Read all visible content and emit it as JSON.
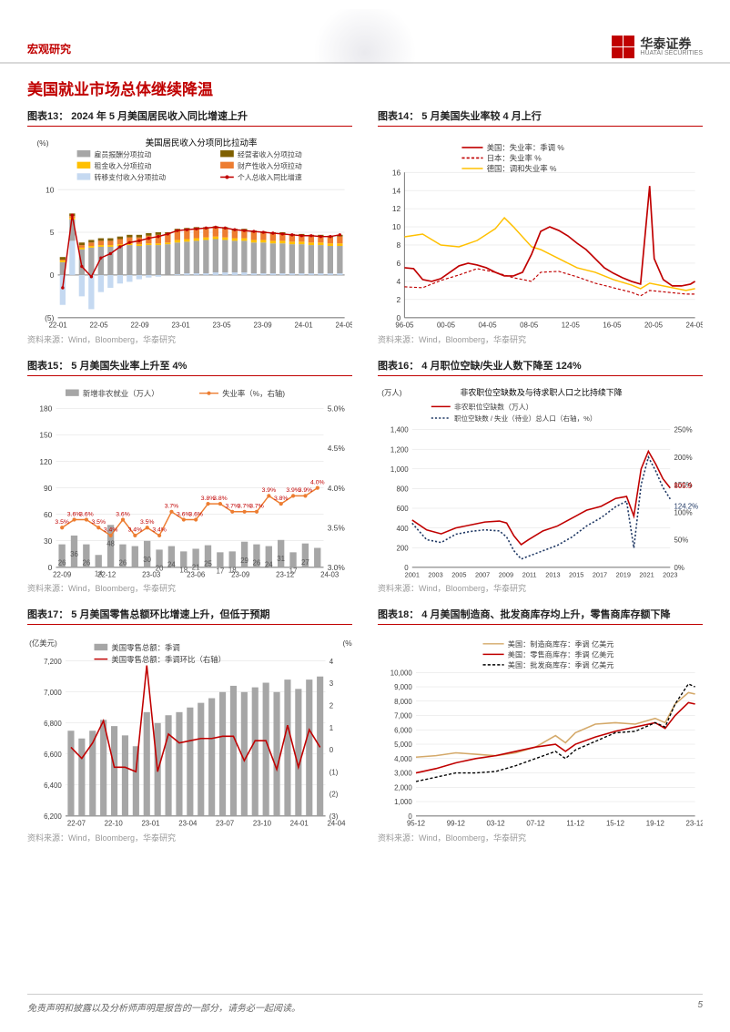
{
  "header": {
    "category": "宏观研究",
    "logo_cn": "华泰证券",
    "logo_en": "HUATAI SECURITIES"
  },
  "section_title": "美国就业市场总体继续降温",
  "source": "资料来源：Wind，Bloomberg，华泰研究",
  "footer": {
    "disclaimer": "免责声明和披露以及分析师声明是报告的一部分，请务必一起阅读。",
    "page": "5"
  },
  "colors": {
    "red": "#c00000",
    "dark_red": "#8b1a1a",
    "gray": "#a6a6a6",
    "orange": "#ed7d31",
    "yellow": "#ffc000",
    "brown": "#7f6000",
    "navy": "#1f3864",
    "axis": "#808080",
    "grid": "#d9d9d9",
    "label": "#404040",
    "tan": "#d4a96a"
  },
  "fig13": {
    "title": "图表13： 2024 年 5 月美国居民收入同比增速上升",
    "chart_title": "美国居民收入分项同比拉动率",
    "y_label": "(%)",
    "ylim": [
      -5,
      10
    ],
    "yticks": [
      -5,
      0,
      5,
      10
    ],
    "x_labels": [
      "22-01",
      "22-05",
      "22-09",
      "23-01",
      "23-05",
      "23-09",
      "24-01",
      "24-05"
    ],
    "legend": [
      {
        "label": "雇员报酬分项拉动",
        "color": "#a6a6a6",
        "type": "bar"
      },
      {
        "label": "经营者收入分项拉动",
        "color": "#7f6000",
        "type": "bar"
      },
      {
        "label": "租金收入分项拉动",
        "color": "#ffc000",
        "type": "bar"
      },
      {
        "label": "财产性收入分项拉动",
        "color": "#ed7d31",
        "type": "bar"
      },
      {
        "label": "转移支付收入分项拉动",
        "color": "#c5d9f1",
        "type": "bar"
      },
      {
        "label": "个人总收入同比增速",
        "color": "#c00000",
        "type": "line"
      }
    ],
    "n": 30,
    "wage": [
      1.5,
      2.5,
      3.0,
      3.2,
      3.3,
      3.3,
      3.4,
      3.5,
      3.4,
      3.5,
      3.5,
      3.6,
      3.7,
      3.7,
      3.8,
      3.9,
      3.9,
      3.8,
      3.7,
      3.7,
      3.6,
      3.6,
      3.5,
      3.5,
      3.4,
      3.4,
      3.3,
      3.3,
      3.2,
      3.2
    ],
    "rent": [
      0.2,
      0.2,
      0.2,
      0.2,
      0.2,
      0.2,
      0.2,
      0.2,
      0.2,
      0.2,
      0.2,
      0.2,
      0.3,
      0.3,
      0.3,
      0.3,
      0.3,
      0.3,
      0.3,
      0.3,
      0.3,
      0.3,
      0.3,
      0.3,
      0.3,
      0.3,
      0.3,
      0.3,
      0.3,
      0.3
    ],
    "prop": [
      0.1,
      0.2,
      0.3,
      0.4,
      0.5,
      0.5,
      0.6,
      0.7,
      0.8,
      0.9,
      1.0,
      1.0,
      1.1,
      1.1,
      1.1,
      1.0,
      1.0,
      1.0,
      0.9,
      0.9,
      0.9,
      0.8,
      0.8,
      0.8,
      0.7,
      0.7,
      0.7,
      0.7,
      0.7,
      0.8
    ],
    "biz": [
      0.3,
      0.3,
      0.3,
      0.3,
      0.3,
      0.3,
      0.3,
      0.3,
      0.3,
      0.3,
      0.3,
      0.2,
      0.2,
      0.2,
      0.2,
      0.2,
      0.2,
      0.2,
      0.2,
      0.2,
      0.2,
      0.2,
      0.2,
      0.2,
      0.2,
      0.2,
      0.2,
      0.2,
      0.2,
      0.2
    ],
    "transfer": [
      -3.5,
      4.0,
      -2.5,
      -4.0,
      -2.0,
      -1.5,
      -1.0,
      -0.8,
      -0.5,
      -0.3,
      -0.2,
      0.0,
      0.1,
      0.2,
      0.2,
      0.2,
      0.3,
      0.3,
      0.3,
      0.3,
      0.2,
      0.2,
      0.2,
      0.2,
      0.2,
      0.2,
      0.2,
      0.2,
      0.2,
      0.2
    ],
    "line": [
      -1.5,
      7.0,
      1.0,
      -0.2,
      2.0,
      2.5,
      3.3,
      3.8,
      4.0,
      4.3,
      4.5,
      4.8,
      5.2,
      5.3,
      5.4,
      5.5,
      5.6,
      5.5,
      5.3,
      5.2,
      5.1,
      5.0,
      4.9,
      4.8,
      4.7,
      4.6,
      4.6,
      4.5,
      4.5,
      4.7
    ]
  },
  "fig14": {
    "title": "图表14： 5 月美国失业率较 4 月上行",
    "ylim": [
      0,
      16
    ],
    "yticks": [
      0,
      2,
      4,
      6,
      8,
      10,
      12,
      14,
      16
    ],
    "x_labels": [
      "96-05",
      "00-05",
      "04-05",
      "08-05",
      "12-05",
      "16-05",
      "20-05",
      "24-05"
    ],
    "legend": [
      {
        "label": "美国：失业率：季调 %",
        "color": "#c00000",
        "dash": "0"
      },
      {
        "label": "日本：失业率 %",
        "color": "#c00000",
        "dash": "3,2"
      },
      {
        "label": "德国：调和失业率 %",
        "color": "#ffc000",
        "dash": "0"
      }
    ],
    "us": [
      [
        0,
        5.5
      ],
      [
        4,
        5.4
      ],
      [
        8,
        4.2
      ],
      [
        12,
        4.0
      ],
      [
        16,
        4.3
      ],
      [
        20,
        5.0
      ],
      [
        24,
        5.7
      ],
      [
        28,
        6.0
      ],
      [
        32,
        5.8
      ],
      [
        36,
        5.5
      ],
      [
        40,
        5.0
      ],
      [
        44,
        4.6
      ],
      [
        48,
        4.6
      ],
      [
        52,
        5.0
      ],
      [
        56,
        7.0
      ],
      [
        60,
        9.5
      ],
      [
        64,
        10.0
      ],
      [
        68,
        9.6
      ],
      [
        72,
        9.0
      ],
      [
        76,
        8.2
      ],
      [
        80,
        7.5
      ],
      [
        84,
        6.5
      ],
      [
        88,
        5.5
      ],
      [
        92,
        4.9
      ],
      [
        96,
        4.4
      ],
      [
        100,
        4.0
      ],
      [
        104,
        3.7
      ],
      [
        108,
        14.5
      ],
      [
        110,
        6.5
      ],
      [
        114,
        4.2
      ],
      [
        118,
        3.5
      ],
      [
        122,
        3.5
      ],
      [
        126,
        3.7
      ],
      [
        128,
        4.0
      ]
    ],
    "jp": [
      [
        0,
        3.4
      ],
      [
        8,
        3.3
      ],
      [
        16,
        4.1
      ],
      [
        24,
        4.7
      ],
      [
        32,
        5.4
      ],
      [
        40,
        5.0
      ],
      [
        48,
        4.4
      ],
      [
        56,
        4.0
      ],
      [
        60,
        5.0
      ],
      [
        68,
        5.1
      ],
      [
        76,
        4.5
      ],
      [
        84,
        3.8
      ],
      [
        92,
        3.3
      ],
      [
        100,
        2.8
      ],
      [
        104,
        2.4
      ],
      [
        108,
        3.0
      ],
      [
        116,
        2.8
      ],
      [
        124,
        2.6
      ],
      [
        128,
        2.6
      ]
    ],
    "de": [
      [
        0,
        8.9
      ],
      [
        8,
        9.2
      ],
      [
        16,
        8.0
      ],
      [
        24,
        7.8
      ],
      [
        32,
        8.5
      ],
      [
        40,
        9.8
      ],
      [
        44,
        11.0
      ],
      [
        48,
        10.0
      ],
      [
        56,
        7.8
      ],
      [
        60,
        7.5
      ],
      [
        68,
        6.5
      ],
      [
        76,
        5.5
      ],
      [
        84,
        5.0
      ],
      [
        92,
        4.2
      ],
      [
        100,
        3.6
      ],
      [
        104,
        3.2
      ],
      [
        108,
        3.8
      ],
      [
        116,
        3.4
      ],
      [
        124,
        3.0
      ],
      [
        128,
        3.2
      ]
    ]
  },
  "fig15": {
    "title": "图表15： 5 月美国失业率上升至 4%",
    "ylim_l": [
      0,
      180
    ],
    "ytick_l": [
      0,
      30,
      60,
      90,
      120,
      150,
      180
    ],
    "ylim_r": [
      3.0,
      5.0
    ],
    "ytick_r": [
      "3.0%",
      "3.5%",
      "4.0%",
      "4.5%",
      "5.0%"
    ],
    "x_labels": [
      "22-09",
      "22-12",
      "23-03",
      "23-06",
      "23-09",
      "23-12",
      "24-03"
    ],
    "legend": [
      {
        "label": "新增非农就业（万人）",
        "color": "#a6a6a6",
        "type": "bar"
      },
      {
        "label": "失业率（%，右轴)",
        "color": "#ed7d31",
        "type": "line"
      }
    ],
    "bars": [
      26,
      36,
      26,
      14,
      48,
      26,
      24,
      30,
      20,
      24,
      18,
      21,
      25,
      17,
      18,
      29,
      26,
      24,
      31,
      17,
      27,
      22
    ],
    "bar_labels": [
      "26",
      "36",
      "26",
      "14",
      "48",
      "26",
      "",
      "30",
      "20",
      "24",
      "18",
      "21",
      "25",
      "17",
      "18",
      "29",
      "26",
      "24",
      "31",
      "17",
      "27",
      ""
    ],
    "line": [
      3.5,
      3.6,
      3.6,
      3.5,
      3.4,
      3.6,
      3.4,
      3.5,
      3.4,
      3.7,
      3.6,
      3.6,
      3.8,
      3.8,
      3.7,
      3.7,
      3.7,
      3.9,
      3.8,
      3.9,
      3.9,
      4.0
    ],
    "line_labels": [
      "3.5%",
      "3.6%",
      "3.6%",
      "3.5%",
      "3.4%",
      "3.6%",
      "3.4%",
      "3.5%",
      "3.4%",
      "3.7%",
      "3.6%",
      "3.6%",
      "3.8%",
      "3.8%",
      "3.7%",
      "3.7%",
      "3.7%",
      "3.9%",
      "3.8%",
      "3.9%",
      "3.9%",
      "4.0%"
    ]
  },
  "fig16": {
    "title": "图表16： 4 月职位空缺/失业人数下降至 124%",
    "chart_title": "非农职位空缺数及与待求职人口之比持续下降",
    "y_label_l": "(万人)",
    "ylim_l": [
      0,
      1400
    ],
    "ytick_l": [
      0,
      200,
      400,
      600,
      800,
      1000,
      1200,
      1400
    ],
    "ylim_r": [
      0,
      250
    ],
    "ytick_r": [
      "0%",
      "50%",
      "100%",
      "150%",
      "200%",
      "250%"
    ],
    "x_labels": [
      "2001",
      "2003",
      "2005",
      "2007",
      "2009",
      "2011",
      "2013",
      "2015",
      "2017",
      "2019",
      "2021",
      "2023"
    ],
    "legend": [
      {
        "label": "非农职位空缺数（万人）",
        "color": "#c00000",
        "dash": "0"
      },
      {
        "label": "职位空缺数 / 失业（待业）总人口（右轴，%）",
        "color": "#1f3864",
        "dash": "2,2"
      }
    ],
    "red": [
      [
        0,
        480
      ],
      [
        8,
        380
      ],
      [
        16,
        340
      ],
      [
        24,
        400
      ],
      [
        32,
        430
      ],
      [
        40,
        460
      ],
      [
        48,
        470
      ],
      [
        52,
        450
      ],
      [
        56,
        320
      ],
      [
        60,
        230
      ],
      [
        64,
        280
      ],
      [
        72,
        370
      ],
      [
        80,
        420
      ],
      [
        88,
        500
      ],
      [
        96,
        580
      ],
      [
        104,
        620
      ],
      [
        112,
        700
      ],
      [
        118,
        720
      ],
      [
        122,
        520
      ],
      [
        126,
        1000
      ],
      [
        130,
        1180
      ],
      [
        134,
        1050
      ],
      [
        138,
        900
      ],
      [
        142,
        806
      ]
    ],
    "blue": [
      [
        0,
        80
      ],
      [
        8,
        50
      ],
      [
        16,
        45
      ],
      [
        24,
        60
      ],
      [
        32,
        65
      ],
      [
        40,
        68
      ],
      [
        48,
        66
      ],
      [
        52,
        55
      ],
      [
        56,
        30
      ],
      [
        60,
        15
      ],
      [
        64,
        20
      ],
      [
        72,
        30
      ],
      [
        80,
        40
      ],
      [
        88,
        55
      ],
      [
        96,
        75
      ],
      [
        104,
        90
      ],
      [
        112,
        110
      ],
      [
        118,
        120
      ],
      [
        122,
        35
      ],
      [
        126,
        150
      ],
      [
        130,
        200
      ],
      [
        134,
        175
      ],
      [
        138,
        145
      ],
      [
        142,
        124
      ]
    ],
    "annot": [
      {
        "text": "805.9",
        "color": "#c00000",
        "x": 144,
        "y_l": 806
      },
      {
        "text": "124.2%",
        "color": "#1f3864",
        "x": 144,
        "y_r": 124
      }
    ]
  },
  "fig17": {
    "title": "图表17： 5 月美国零售总额环比增速上升，但低于预期",
    "y_label_l": "(亿美元)",
    "ylim_l": [
      6200,
      7200
    ],
    "ytick_l": [
      6200,
      6400,
      6600,
      6800,
      7000,
      7200
    ],
    "y_label_r": "(%)",
    "ylim_r": [
      -3,
      4
    ],
    "ytick_r": [
      -3,
      -2,
      -1,
      0,
      1,
      2,
      3,
      4
    ],
    "x_labels": [
      "22-07",
      "22-10",
      "23-01",
      "23-04",
      "23-07",
      "23-10",
      "24-01",
      "24-04"
    ],
    "legend": [
      {
        "label": "美国零售总额：季调",
        "color": "#a6a6a6",
        "type": "bar"
      },
      {
        "label": "美国零售总额：季调环比（右轴）",
        "color": "#c00000",
        "type": "line"
      }
    ],
    "bars": [
      6750,
      6700,
      6750,
      6820,
      6780,
      6720,
      6650,
      6870,
      6800,
      6850,
      6870,
      6900,
      6930,
      6960,
      7000,
      7040,
      7000,
      7030,
      7060,
      7000,
      7080,
      7020,
      7080,
      7100
    ],
    "line": [
      0.1,
      -0.4,
      0.3,
      1.3,
      -0.8,
      -0.8,
      -1.0,
      3.8,
      -1.0,
      0.7,
      0.3,
      0.4,
      0.5,
      0.5,
      0.6,
      0.6,
      -0.5,
      0.4,
      0.4,
      -0.9,
      1.1,
      -0.8,
      0.9,
      0.1
    ]
  },
  "fig18": {
    "title": "图表18： 4 月美国制造商、批发商库存均上升，零售商库存额下降",
    "ylim": [
      0,
      10000
    ],
    "yticks": [
      0,
      1000,
      2000,
      3000,
      4000,
      5000,
      6000,
      7000,
      8000,
      9000,
      10000
    ],
    "x_labels": [
      "95-12",
      "99-12",
      "03-12",
      "07-12",
      "11-12",
      "15-12",
      "19-12",
      "23-12"
    ],
    "legend": [
      {
        "label": "美国：制造商库存：季调 亿美元",
        "color": "#d4a96a",
        "dash": "0"
      },
      {
        "label": "美国：零售商库存：季调 亿美元",
        "color": "#c00000",
        "dash": "0"
      },
      {
        "label": "美国：批发商库存：季调 亿美元",
        "color": "#000000",
        "dash": "3,2"
      }
    ],
    "mfg": [
      [
        0,
        4100
      ],
      [
        12,
        4200
      ],
      [
        24,
        4400
      ],
      [
        36,
        4300
      ],
      [
        48,
        4200
      ],
      [
        60,
        4400
      ],
      [
        72,
        4800
      ],
      [
        84,
        5600
      ],
      [
        90,
        5100
      ],
      [
        96,
        5800
      ],
      [
        108,
        6400
      ],
      [
        120,
        6500
      ],
      [
        132,
        6400
      ],
      [
        144,
        6800
      ],
      [
        150,
        6500
      ],
      [
        156,
        7800
      ],
      [
        164,
        8600
      ],
      [
        168,
        8500
      ]
    ],
    "ret": [
      [
        0,
        3000
      ],
      [
        12,
        3300
      ],
      [
        24,
        3700
      ],
      [
        36,
        4000
      ],
      [
        48,
        4200
      ],
      [
        60,
        4500
      ],
      [
        72,
        4800
      ],
      [
        84,
        5000
      ],
      [
        90,
        4500
      ],
      [
        96,
        5000
      ],
      [
        108,
        5500
      ],
      [
        120,
        5900
      ],
      [
        132,
        6200
      ],
      [
        144,
        6500
      ],
      [
        150,
        6100
      ],
      [
        156,
        7000
      ],
      [
        164,
        7900
      ],
      [
        168,
        7800
      ]
    ],
    "whl": [
      [
        0,
        2400
      ],
      [
        12,
        2700
      ],
      [
        24,
        3000
      ],
      [
        36,
        3000
      ],
      [
        48,
        3100
      ],
      [
        60,
        3500
      ],
      [
        72,
        4000
      ],
      [
        84,
        4500
      ],
      [
        90,
        4000
      ],
      [
        96,
        4600
      ],
      [
        108,
        5200
      ],
      [
        120,
        5800
      ],
      [
        132,
        5900
      ],
      [
        144,
        6500
      ],
      [
        150,
        6200
      ],
      [
        156,
        7800
      ],
      [
        164,
        9200
      ],
      [
        168,
        9000
      ]
    ]
  }
}
